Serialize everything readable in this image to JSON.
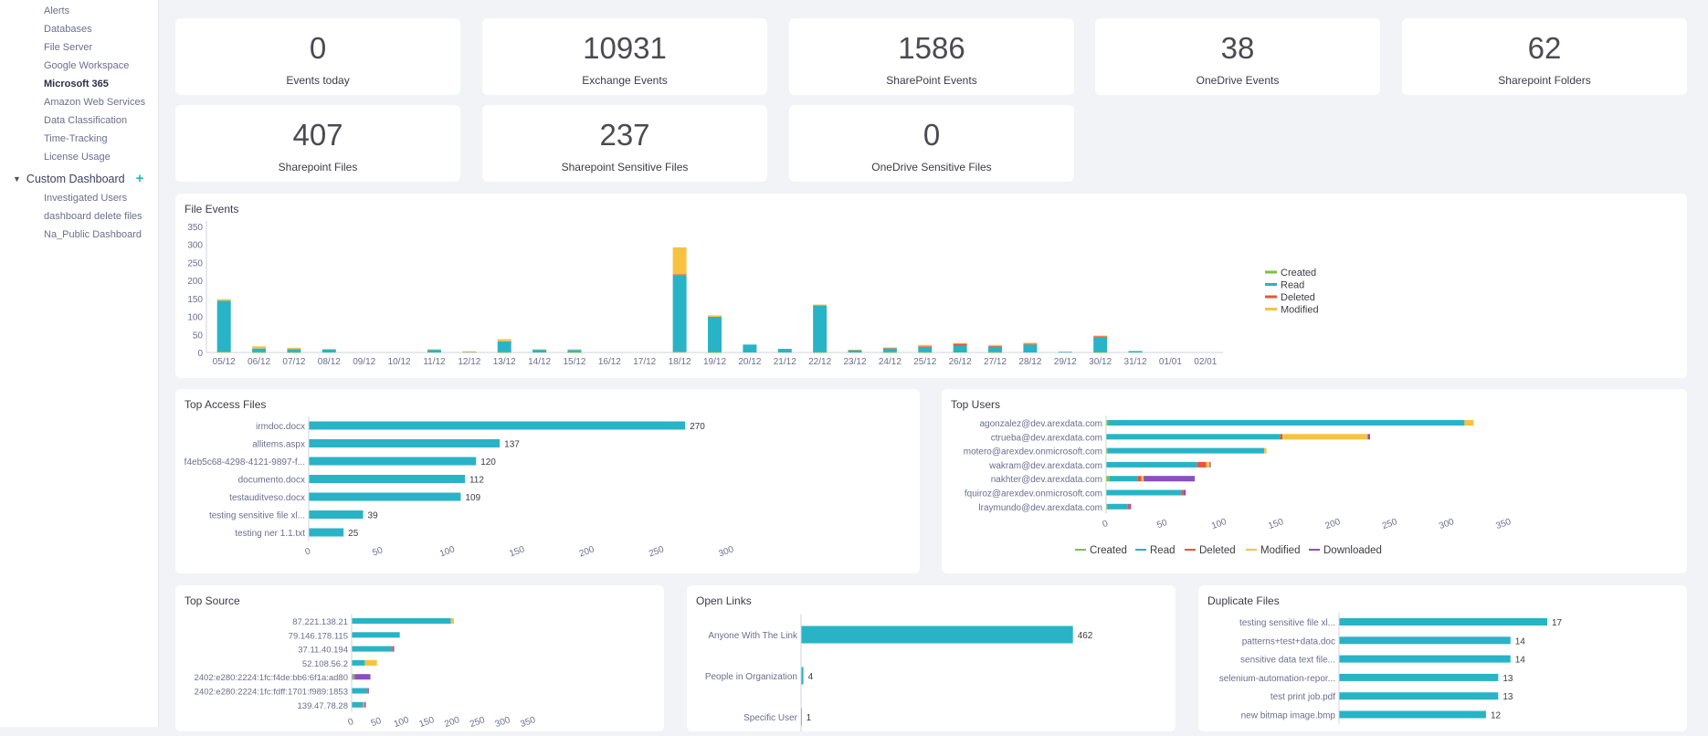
{
  "sidebar": {
    "items": [
      "Alerts",
      "Databases",
      "File Server",
      "Google Workspace",
      "Microsoft 365",
      "Amazon Web Services",
      "Data Classification",
      "Time-Tracking",
      "License Usage"
    ],
    "active_index": 4,
    "group_label": "Custom Dashboard",
    "group_items": [
      "Investigated Users",
      "dashboard delete files",
      "Na_Public Dashboard"
    ]
  },
  "stats": [
    {
      "value": "0",
      "label": "Events today"
    },
    {
      "value": "10931",
      "label": "Exchange Events"
    },
    {
      "value": "1586",
      "label": "SharePoint Events"
    },
    {
      "value": "38",
      "label": "OneDrive Events"
    },
    {
      "value": "62",
      "label": "Sharepoint Folders"
    },
    {
      "value": "407",
      "label": "Sharepoint Files"
    },
    {
      "value": "237",
      "label": "Sharepoint Sensitive Files"
    },
    {
      "value": "0",
      "label": "OneDrive Sensitive Files"
    }
  ],
  "colors": {
    "created": "#7cc242",
    "read": "#29b3c6",
    "deleted": "#e8543f",
    "modified": "#f7c23f",
    "downloaded": "#8a4fc0"
  },
  "chart_data": [
    {
      "type": "bar",
      "stacked": true,
      "title": "File Events",
      "categories": [
        "05/12",
        "06/12",
        "07/12",
        "08/12",
        "09/12",
        "10/12",
        "11/12",
        "12/12",
        "13/12",
        "14/12",
        "15/12",
        "16/12",
        "17/12",
        "18/12",
        "19/12",
        "20/12",
        "21/12",
        "22/12",
        "23/12",
        "24/12",
        "25/12",
        "26/12",
        "27/12",
        "28/12",
        "29/12",
        "30/12",
        "31/12",
        "01/01",
        "02/01"
      ],
      "yticks": [
        "0",
        "50",
        "100",
        "150",
        "200",
        "250",
        "300",
        "350"
      ],
      "ylim": [
        0,
        350
      ],
      "series": [
        {
          "name": "Created",
          "values": [
            2,
            1,
            1,
            0,
            0,
            0,
            0,
            0,
            1,
            0,
            1,
            0,
            0,
            2,
            1,
            0,
            0,
            1,
            0,
            1,
            1,
            0,
            1,
            0,
            0,
            1,
            0,
            0,
            0
          ]
        },
        {
          "name": "Read",
          "values": [
            142,
            10,
            8,
            8,
            0,
            0,
            8,
            2,
            30,
            8,
            6,
            0,
            0,
            213,
            98,
            22,
            10,
            130,
            7,
            10,
            15,
            18,
            15,
            22,
            2,
            40,
            4,
            0,
            0
          ]
        },
        {
          "name": "Deleted",
          "values": [
            0,
            0,
            0,
            0,
            0,
            0,
            0,
            0,
            0,
            0,
            0,
            0,
            0,
            2,
            0,
            0,
            0,
            0,
            0,
            2,
            1,
            7,
            2,
            2,
            0,
            4,
            0,
            0,
            0
          ]
        },
        {
          "name": "Modified",
          "values": [
            4,
            6,
            4,
            2,
            0,
            0,
            1,
            1,
            6,
            1,
            2,
            0,
            0,
            75,
            4,
            0,
            0,
            2,
            1,
            1,
            4,
            1,
            3,
            3,
            0,
            2,
            0,
            0,
            0
          ]
        }
      ],
      "legend": [
        "Created",
        "Read",
        "Deleted",
        "Modified"
      ],
      "legend_position": "right"
    },
    {
      "type": "bar",
      "orientation": "horizontal",
      "title": "Top Access Files",
      "categories": [
        "irmdoc.docx",
        "allitems.aspx",
        "f4eb5c68-4298-4121-9897-f...",
        "documento.docx",
        "testauditveso.docx",
        "testing sensitive file xl...",
        "testing ner 1.1.txt"
      ],
      "values": [
        270,
        137,
        120,
        112,
        109,
        39,
        25
      ],
      "xticks": [
        "0",
        "50",
        "100",
        "150",
        "200",
        "250",
        "300"
      ],
      "xlim": [
        0,
        300
      ]
    },
    {
      "type": "bar",
      "orientation": "horizontal",
      "stacked": true,
      "title": "Top Users",
      "categories": [
        "agonzalez@dev.arexdata.com",
        "ctrueba@dev.arexdata.com",
        "motero@arexdev.onmicrosoft.com",
        "wakram@dev.arexdata.com",
        "nakhter@dev.arexdata.com",
        "fquiroz@arexdev.onmicrosoft.com",
        "lraymundo@dev.arexdata.com"
      ],
      "series": [
        {
          "name": "Created",
          "values": [
            2,
            0,
            1,
            0,
            3,
            0,
            1
          ]
        },
        {
          "name": "Read",
          "values": [
            313,
            153,
            138,
            80,
            25,
            66,
            18
          ]
        },
        {
          "name": "Deleted",
          "values": [
            0,
            2,
            0,
            8,
            3,
            2,
            2
          ]
        },
        {
          "name": "Modified",
          "values": [
            8,
            75,
            2,
            3,
            2,
            0,
            0
          ]
        },
        {
          "name": "Downloaded",
          "values": [
            0,
            2,
            0,
            1,
            45,
            2,
            1
          ]
        }
      ],
      "xticks": [
        "0",
        "50",
        "100",
        "150",
        "200",
        "250",
        "300",
        "350"
      ],
      "xlim": [
        0,
        350
      ],
      "legend": [
        "Created",
        "Read",
        "Deleted",
        "Modified",
        "Downloaded"
      ],
      "legend_position": "bottom"
    },
    {
      "type": "bar",
      "orientation": "horizontal",
      "stacked": true,
      "title": "Top Source",
      "categories": [
        "87.221.138.21",
        "79.146.178.115",
        "37.11.40.194",
        "52.108.56.2",
        "2402:e280:2224:1fc:f4de:bb6:6f1a:ad80",
        "2402:e280:2224:1fc:fdff:1701:f989:1853",
        "139.47.78.28"
      ],
      "series": [
        {
          "name": "Created",
          "values": [
            1,
            0,
            0,
            1,
            2,
            0,
            0
          ]
        },
        {
          "name": "Read",
          "values": [
            195,
            95,
            80,
            25,
            3,
            30,
            22
          ]
        },
        {
          "name": "Deleted",
          "values": [
            0,
            0,
            2,
            0,
            2,
            2,
            1
          ]
        },
        {
          "name": "Modified",
          "values": [
            6,
            0,
            0,
            24,
            0,
            0,
            2
          ]
        },
        {
          "name": "Downloaded",
          "values": [
            0,
            0,
            2,
            0,
            30,
            2,
            3
          ]
        }
      ],
      "xticks": [
        "0",
        "50",
        "100",
        "150",
        "200",
        "250",
        "300",
        "350"
      ],
      "xlim": [
        0,
        350
      ]
    },
    {
      "type": "bar",
      "orientation": "horizontal",
      "title": "Open Links",
      "categories": [
        "Anyone With The Link",
        "People in Organization",
        "Specific User"
      ],
      "values": [
        462,
        4,
        1
      ]
    },
    {
      "type": "bar",
      "orientation": "horizontal",
      "title": "Duplicate Files",
      "categories": [
        "testing sensitive file xl...",
        "patterns+test+data.doc",
        "sensitive data text file...",
        "selenium-automation-repor...",
        "test print job.pdf",
        "new bitmap image.bmp"
      ],
      "values": [
        17,
        14,
        14,
        13,
        13,
        12
      ]
    }
  ]
}
